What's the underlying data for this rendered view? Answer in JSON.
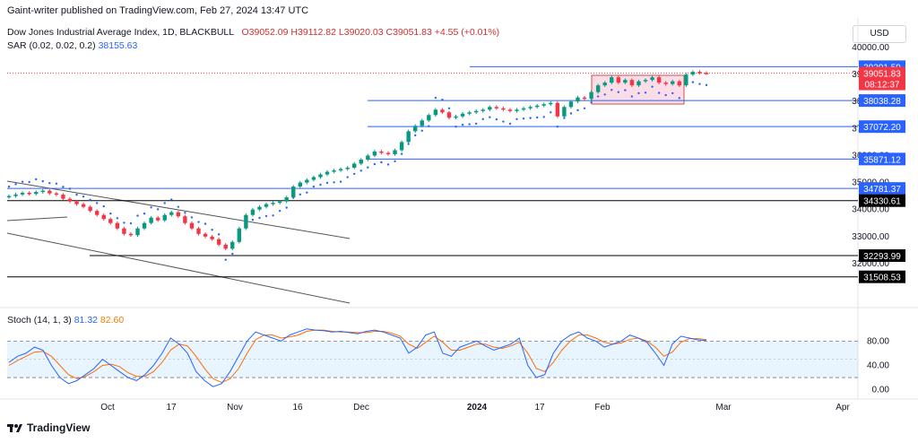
{
  "header": {
    "published": "Gaint-writer published on TradingView.com, Feb 27, 2024 13:47 UTC"
  },
  "legend": {
    "title": "Dow Jones Industrial Average Index, 1D, BLACKBULL",
    "o": "O39052.09",
    "h": "H39112.82",
    "l": "L39020.03",
    "c": "C39051.83",
    "change": "+4.55 (+0.01%)",
    "sar_label": "SAR (0.02, 0.02, 0.2)",
    "sar_value": "38155.63",
    "stoch_label": "Stoch (14, 1, 3)",
    "stoch_k": "81.32",
    "stoch_d": "82.60"
  },
  "currency": "USD",
  "brand": "TradingView",
  "chart_data": {
    "type": "candlestick",
    "title": "Dow Jones Industrial Average Index, 1D, BLACKBULL",
    "ylim": [
      31000,
      40300
    ],
    "y_ticks": [
      32000,
      33000,
      34000,
      35000,
      36000,
      37000,
      38000,
      39000,
      40000
    ],
    "y_tick_labels": [
      "32000.00",
      "33000.00",
      "34000.00",
      "35000.00",
      "36000.00",
      "37000.00",
      "38000.00",
      "39000.00",
      "40000.00"
    ],
    "x_labels": [
      "Oct",
      "17",
      "Nov",
      "16",
      "Dec",
      "2024",
      "17",
      "Feb",
      "Mar",
      "Apr"
    ],
    "horizontal_levels": [
      {
        "value": 39291.59,
        "label": "39291.59",
        "color": "#2962ff"
      },
      {
        "value": 38038.28,
        "label": "38038.28",
        "color": "#2962ff"
      },
      {
        "value": 37072.2,
        "label": "37072.20",
        "color": "#2962ff"
      },
      {
        "value": 35871.12,
        "label": "35871.12",
        "color": "#2962ff"
      },
      {
        "value": 34781.37,
        "label": "34781.37",
        "color": "#2962ff"
      },
      {
        "value": 34330.61,
        "label": "34330.61",
        "color": "#000000"
      },
      {
        "value": 32293.99,
        "label": "32293.99",
        "color": "#000000"
      },
      {
        "value": 31508.53,
        "label": "31508.53",
        "color": "#000000"
      }
    ],
    "last_price": {
      "value": 39051.83,
      "label": "39051.83",
      "countdown": "08:12:37",
      "color": "#f23645"
    },
    "closes": [
      34500,
      34560,
      34620,
      34580,
      34650,
      34700,
      34600,
      34550,
      34400,
      34300,
      34200,
      34100,
      33950,
      33800,
      33650,
      33500,
      33300,
      33100,
      33050,
      33300,
      33500,
      33700,
      33600,
      33800,
      33900,
      33750,
      33500,
      33300,
      33100,
      33000,
      32900,
      32700,
      32550,
      32800,
      33300,
      33800,
      34000,
      34100,
      34200,
      34250,
      34300,
      34450,
      34850,
      35000,
      35100,
      35200,
      35300,
      35400,
      35450,
      35500,
      35550,
      35700,
      35850,
      36000,
      36150,
      36100,
      36050,
      36200,
      36500,
      36900,
      37100,
      37300,
      37500,
      37700,
      37600,
      37400,
      37450,
      37550,
      37600,
      37650,
      37700,
      37800,
      37750,
      37700,
      37650,
      37700,
      37750,
      37800,
      37850,
      37900,
      37950,
      37450,
      37800,
      38000,
      38150,
      38100,
      38350,
      38600,
      38700,
      38900,
      38700,
      38800,
      38600,
      38750,
      38800,
      38900,
      38700,
      38650,
      38750,
      38600,
      39000,
      39100,
      39060,
      39052
    ],
    "stoch_k": [
      45,
      55,
      60,
      70,
      65,
      40,
      20,
      10,
      15,
      25,
      35,
      50,
      40,
      30,
      20,
      15,
      25,
      40,
      60,
      85,
      75,
      60,
      30,
      15,
      5,
      10,
      30,
      55,
      80,
      95,
      90,
      85,
      80,
      90,
      95,
      100,
      98,
      97,
      95,
      96,
      94,
      92,
      96,
      98,
      95,
      90,
      85,
      60,
      70,
      90,
      95,
      60,
      55,
      70,
      75,
      80,
      72,
      65,
      70,
      75,
      85,
      40,
      20,
      25,
      60,
      80,
      90,
      95,
      85,
      80,
      70,
      75,
      80,
      90,
      85,
      78,
      60,
      40,
      75,
      88,
      85,
      82,
      81
    ],
    "stoch_d": [
      40,
      48,
      55,
      62,
      63,
      55,
      40,
      25,
      18,
      22,
      30,
      40,
      42,
      38,
      28,
      22,
      22,
      30,
      45,
      65,
      75,
      72,
      55,
      35,
      18,
      12,
      18,
      35,
      60,
      82,
      90,
      90,
      85,
      87,
      90,
      96,
      98,
      98,
      96,
      95,
      95,
      94,
      94,
      96,
      96,
      93,
      88,
      75,
      68,
      78,
      88,
      78,
      65,
      65,
      70,
      75,
      75,
      70,
      68,
      72,
      78,
      60,
      35,
      30,
      45,
      65,
      80,
      90,
      90,
      85,
      78,
      75,
      77,
      83,
      85,
      80,
      70,
      55,
      62,
      78,
      84,
      84,
      82.6
    ],
    "stoch_ylim": [
      -5,
      110
    ],
    "stoch_ticks": [
      0,
      40,
      80
    ],
    "stoch_tick_labels": [
      "0.00",
      "40.00",
      "80.00"
    ],
    "stoch_bands": [
      20,
      80
    ]
  }
}
